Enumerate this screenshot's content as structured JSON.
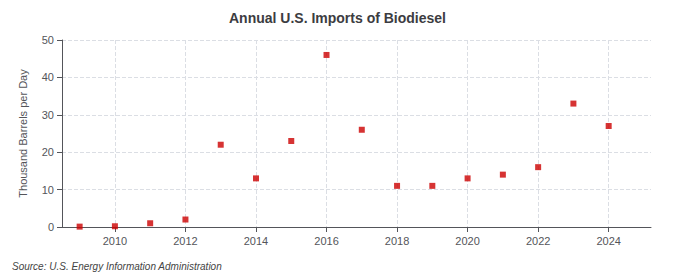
{
  "chart_data": {
    "type": "scatter",
    "title": "Annual U.S. Imports of Biodiesel",
    "ylabel": "Thousand Barrels per Day",
    "annotations": [
      "Source: U.S. Energy Information Administration"
    ],
    "x": [
      2009,
      2010,
      2011,
      2012,
      2013,
      2014,
      2015,
      2016,
      2017,
      2018,
      2019,
      2020,
      2021,
      2022,
      2023,
      2024
    ],
    "values": [
      0.1,
      0.2,
      1.0,
      2.0,
      22.0,
      13.0,
      23.0,
      46.0,
      26.0,
      11.0,
      11.0,
      13.0,
      14.0,
      16.0,
      33.0,
      27.0
    ],
    "color": "#cc0000",
    "marker": "square",
    "xlim": [
      2008.5,
      2025.2
    ],
    "xticks": [
      2010,
      2012,
      2014,
      2016,
      2018,
      2020,
      2022,
      2024
    ],
    "ylim": [
      0,
      50
    ],
    "yticks": [
      0,
      10,
      20,
      30,
      40,
      50
    ],
    "grid": true
  }
}
